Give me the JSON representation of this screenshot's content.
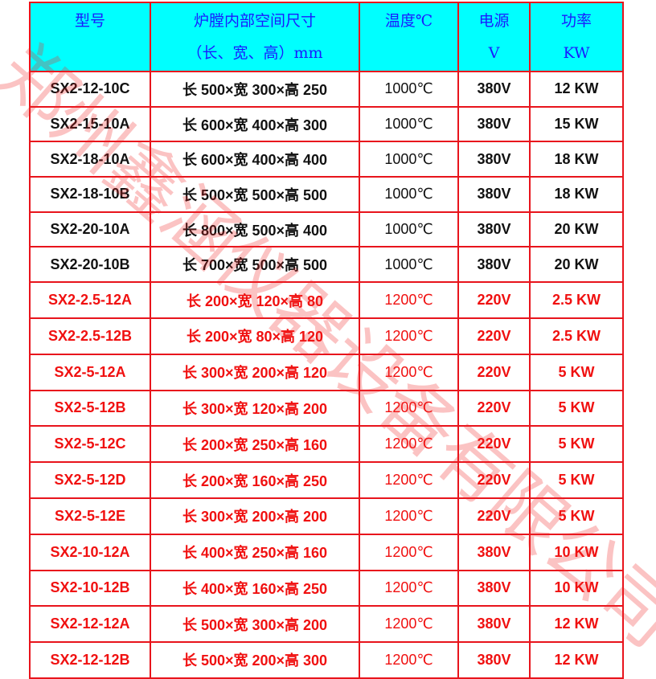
{
  "header": {
    "model": "型号",
    "size_line1": "炉膛内部空间尺寸",
    "size_line2": "（长、宽、高）mm",
    "temp": "温度℃",
    "power_line1": "电源",
    "power_line2": "V",
    "kw_line1": "功率",
    "kw_line2": "KW"
  },
  "colors": {
    "header_bg": "#00ffff",
    "header_text": "#1a1aff",
    "border": "#e8141c",
    "red_text": "#f01010"
  },
  "watermark": "郑州鑫涵仪器设备有限公司",
  "rows": [
    {
      "model": "SX2-12-10C",
      "size": "长 500×宽 300×高 250",
      "temp": "1000℃",
      "voltage": "380V",
      "power": "12 KW",
      "color": "black"
    },
    {
      "model": "SX2-15-10A",
      "size": "长 600×宽 400×高 300",
      "temp": "1000℃",
      "voltage": "380V",
      "power": "15 KW",
      "color": "black"
    },
    {
      "model": "SX2-18-10A",
      "size": "长 600×宽 400×高 400",
      "temp": "1000℃",
      "voltage": "380V",
      "power": "18 KW",
      "color": "black"
    },
    {
      "model": "SX2-18-10B",
      "size": "长 500×宽 500×高 500",
      "temp": "1000℃",
      "voltage": "380V",
      "power": "18 KW",
      "color": "black"
    },
    {
      "model": "SX2-20-10A",
      "size": "长 800×宽 500×高 400",
      "temp": "1000℃",
      "voltage": "380V",
      "power": "20 KW",
      "color": "black"
    },
    {
      "model": "SX2-20-10B",
      "size": "长 700×宽 500×高 500",
      "temp": "1000℃",
      "voltage": "380V",
      "power": "20 KW",
      "color": "black"
    },
    {
      "model": "SX2-2.5-12A",
      "size": "长 200×宽 120×高 80",
      "temp": "1200℃",
      "voltage": "220V",
      "power": "2.5 KW",
      "color": "red"
    },
    {
      "model": "SX2-2.5-12B",
      "size": "长 200×宽 80×高 120",
      "temp": "1200℃",
      "voltage": "220V",
      "power": "2.5 KW",
      "color": "red"
    },
    {
      "model": "SX2-5-12A",
      "size": "长 300×宽 200×高 120",
      "temp": "1200℃",
      "voltage": "220V",
      "power": "5 KW",
      "color": "red"
    },
    {
      "model": "SX2-5-12B",
      "size": "长 300×宽 120×高 200",
      "temp": "1200℃",
      "voltage": "220V",
      "power": "5 KW",
      "color": "red"
    },
    {
      "model": "SX2-5-12C",
      "size": "长 200×宽 250×高 160",
      "temp": "1200℃",
      "voltage": "220V",
      "power": "5 KW",
      "color": "red"
    },
    {
      "model": "SX2-5-12D",
      "size": "长 200×宽 160×高 250",
      "temp": "1200℃",
      "voltage": "220V",
      "power": "5 KW",
      "color": "red"
    },
    {
      "model": "SX2-5-12E",
      "size": "长 300×宽 200×高 200",
      "temp": "1200℃",
      "voltage": "220V",
      "power": "5 KW",
      "color": "red"
    },
    {
      "model": "SX2-10-12A",
      "size": "长 400×宽 250×高 160",
      "temp": "1200℃",
      "voltage": "380V",
      "power": "10 KW",
      "color": "red"
    },
    {
      "model": "SX2-10-12B",
      "size": "长 400×宽 160×高 250",
      "temp": "1200℃",
      "voltage": "380V",
      "power": "10 KW",
      "color": "red"
    },
    {
      "model": "SX2-12-12A",
      "size": "长 500×宽 300×高 200",
      "temp": "1200℃",
      "voltage": "380V",
      "power": "12 KW",
      "color": "red"
    },
    {
      "model": "SX2-12-12B",
      "size": "长 500×宽 200×高 300",
      "temp": "1200℃",
      "voltage": "380V",
      "power": "12 KW",
      "color": "red"
    }
  ]
}
